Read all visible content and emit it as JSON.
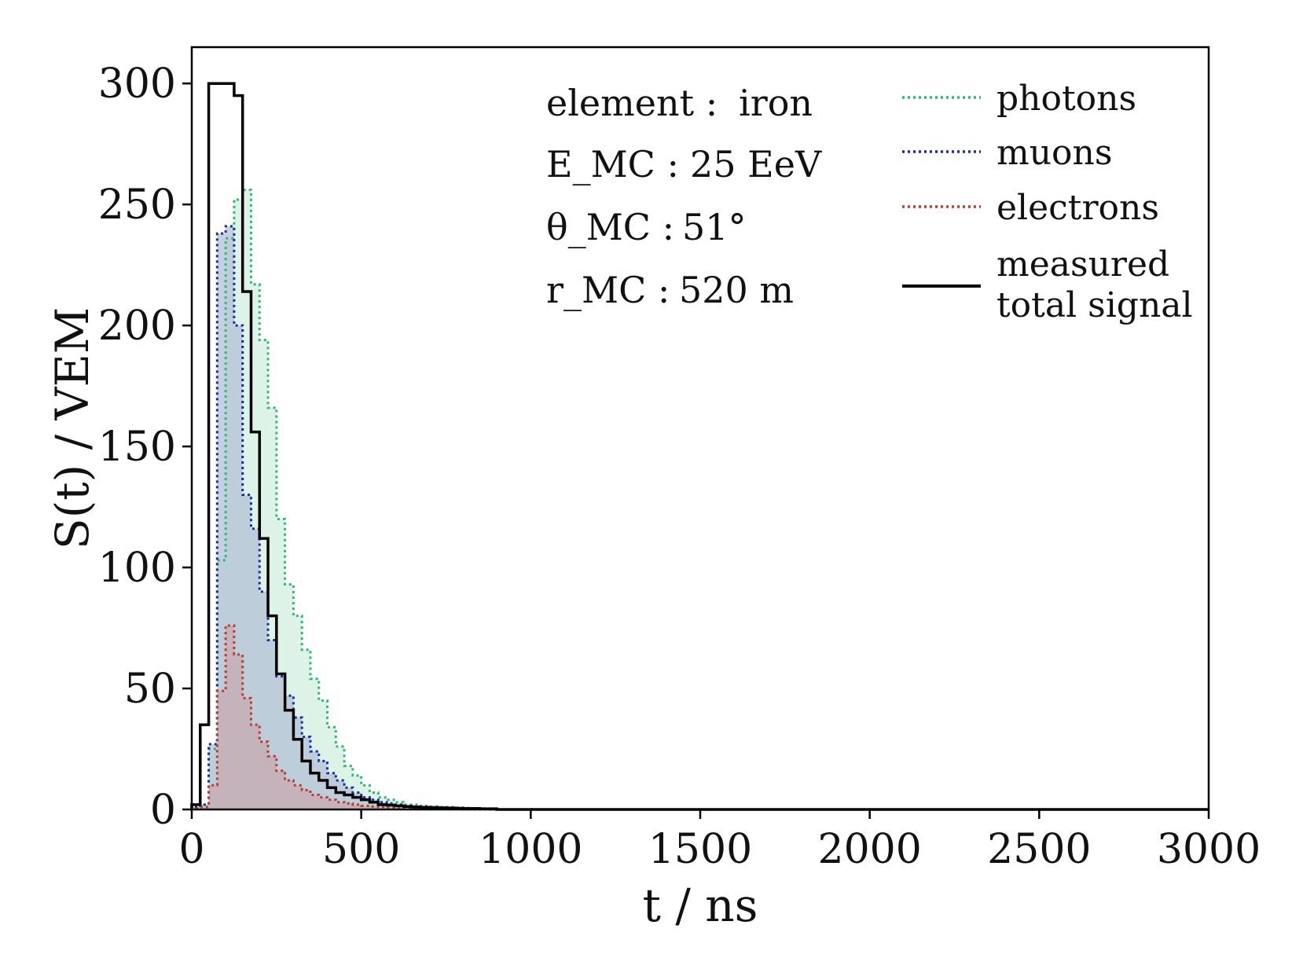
{
  "chart_data": {
    "type": "histogram",
    "xlabel": "t / ns",
    "ylabel": "S(t) / VEM",
    "xlim": [
      0,
      3000
    ],
    "ylim": [
      0,
      315
    ],
    "xticks": [
      0,
      500,
      1000,
      1500,
      2000,
      2500,
      3000
    ],
    "yticks": [
      0,
      50,
      100,
      150,
      200,
      250,
      300
    ],
    "bin_width_ns": 25,
    "grid": false,
    "legend_position": "top-right",
    "annotations": [
      {
        "label": "element :",
        "value": "iron"
      },
      {
        "label": "E_MC :",
        "value": "25 EeV"
      },
      {
        "label": "θ_MC :",
        "value": "51°"
      },
      {
        "label": "r_MC :",
        "value": "520 m"
      }
    ],
    "series": [
      {
        "name": "photons",
        "style": "dotted",
        "color": "#2eb872",
        "fill": "#d2efdf",
        "values": [
          1,
          2,
          25,
          103,
          236,
          252,
          256,
          217,
          194,
          166,
          120,
          93,
          80,
          66,
          54,
          45,
          34,
          26,
          18,
          14,
          10,
          7,
          5,
          4,
          3,
          2,
          2,
          1.5,
          1.2,
          1,
          1,
          0.8,
          0.6,
          0.5,
          0.4,
          0.3
        ]
      },
      {
        "name": "muons",
        "style": "dotted",
        "color": "#1a2aa0",
        "fill": "#b2c2d6",
        "values": [
          1,
          2,
          27,
          238,
          241,
          200,
          130,
          116,
          90,
          70,
          55,
          47,
          38,
          30,
          24,
          20,
          15,
          12,
          9,
          7,
          5,
          4,
          3,
          2.5,
          2,
          1.5,
          1.2,
          1,
          0.8,
          0.7,
          0.6,
          0.5,
          0.4,
          0.3,
          0.2,
          0.1
        ]
      },
      {
        "name": "electrons",
        "style": "dotted",
        "color": "#c0392b",
        "fill": "#c7aab0",
        "values": [
          0.5,
          1,
          10,
          49,
          76,
          64,
          46,
          35,
          28,
          22,
          16,
          12,
          10,
          8,
          6,
          5,
          4,
          3,
          2.5,
          2,
          1.5,
          1.2,
          1,
          0.8,
          0.7,
          0.6,
          0.5,
          0.4,
          0.3,
          0.3,
          0.2,
          0.2,
          0.1,
          0.1,
          0.1,
          0.1
        ]
      },
      {
        "name": "measured total signal",
        "style": "solid",
        "color": "#000000",
        "values": [
          2,
          35,
          300,
          300,
          300,
          295,
          214,
          156,
          112,
          80,
          56,
          41,
          29,
          20,
          15,
          12,
          9,
          7,
          6,
          5,
          4,
          3,
          2,
          1.8,
          1.5,
          1.2,
          1,
          0.9,
          0.8,
          0.7,
          0.6,
          0.5,
          0.4,
          0.4,
          0.3,
          0.3
        ]
      }
    ]
  }
}
